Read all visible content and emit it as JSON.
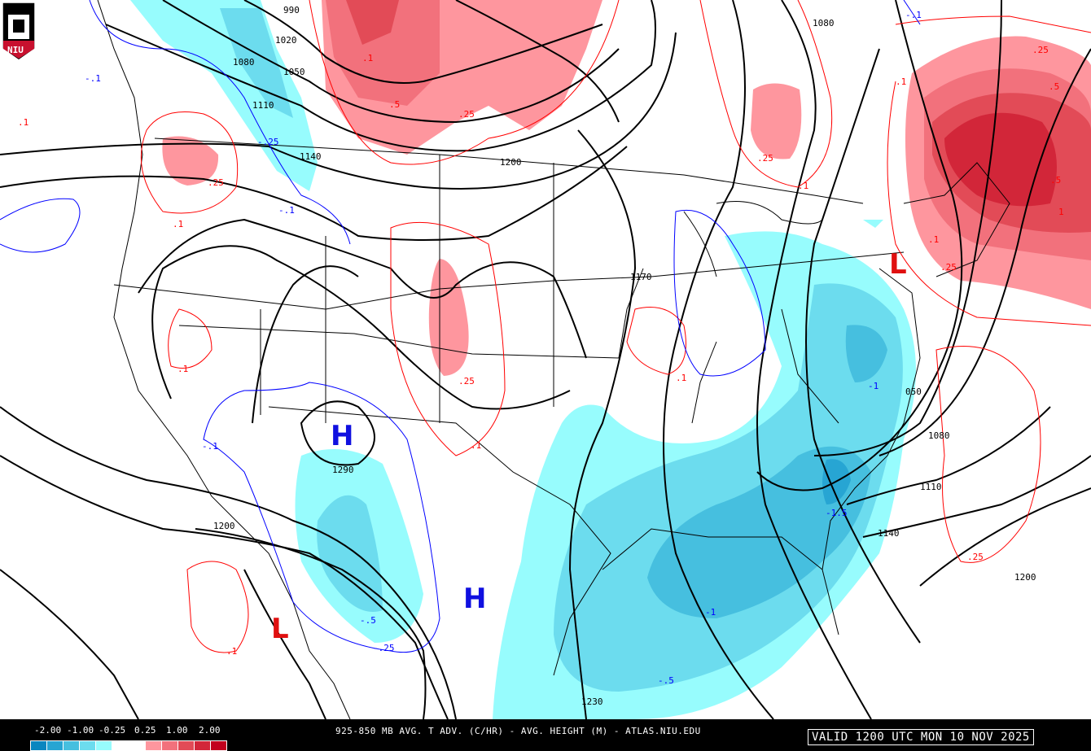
{
  "logo": {
    "text": "NIU"
  },
  "footer": {
    "legend_labels": [
      "-2.00",
      "-1.00",
      "-0.25",
      "0.25",
      "1.00",
      "2.00"
    ],
    "legend_colors": [
      "#0a86bf",
      "#27a5d3",
      "#46bfdf",
      "#6cdcee",
      "#97fcfd",
      "#ffffff",
      "#ffffff",
      "#fe969e",
      "#f2717c",
      "#e24b57",
      "#d22639",
      "#c2001d"
    ],
    "title": "925-850 MB AVG. T ADV. (C/HR) - AVG. HEIGHT (M) - ATLAS.NIU.EDU",
    "valid": "VALID 1200 UTC MON 10 NOV 2025"
  },
  "map": {
    "pressure_centers": [
      {
        "type": "H",
        "color": "#1010e0"
      },
      {
        "type": "H",
        "color": "#1010e0"
      },
      {
        "type": "L",
        "color": "#e01010"
      },
      {
        "type": "L",
        "color": "#e01010"
      }
    ],
    "height_labels": [
      "990",
      "1020",
      "1050",
      "1080",
      "1110",
      "1140",
      "1200",
      "1170",
      "1290",
      "1200",
      "1230",
      "1080",
      "050",
      "1080",
      "1110",
      "1140",
      "1200"
    ],
    "tadv_labels_warm": [
      ".1",
      ".5",
      ".25",
      ".25",
      ".1",
      ".25",
      ".25",
      ".1",
      ".1",
      ".1",
      ".25",
      ".1",
      ".5",
      ".25",
      ".1",
      "1",
      ".5",
      ".25",
      ".1",
      ".1",
      ".1"
    ],
    "tadv_labels_cold": [
      "-.1",
      "-.25",
      "-.1",
      "-.1",
      "-.5",
      "-.25",
      "-1",
      "-1.5",
      "-.5",
      "-1",
      "-.1"
    ]
  }
}
